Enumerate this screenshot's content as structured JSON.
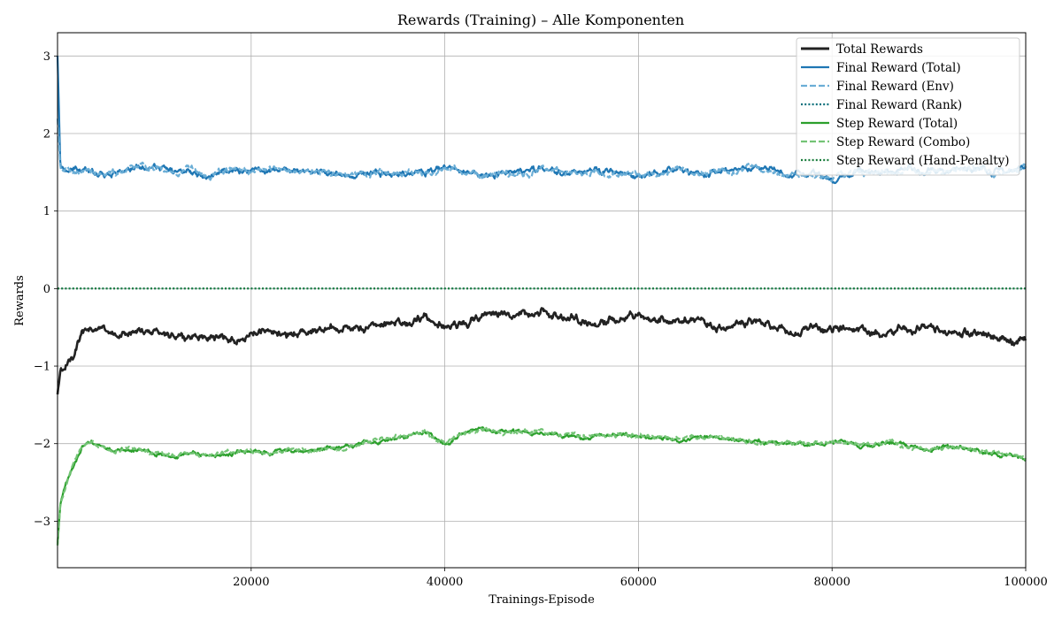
{
  "chart_data": {
    "type": "line",
    "title": "Rewards (Training) – Alle Komponenten",
    "xlabel": "Trainings-Episode",
    "ylabel": "Rewards",
    "xlim": [
      0,
      100000
    ],
    "ylim": [
      -3.6,
      3.3
    ],
    "xticks": [
      20000,
      40000,
      60000,
      80000,
      100000
    ],
    "xtick_labels": [
      "20000",
      "40000",
      "60000",
      "80000",
      "100000"
    ],
    "yticks": [
      -3,
      -2,
      -1,
      0,
      1,
      2,
      3
    ],
    "ytick_labels": [
      "−3",
      "−2",
      "−1",
      "0",
      "1",
      "2",
      "3"
    ],
    "grid": true,
    "legend_position": "top-right",
    "series": [
      {
        "name": "Total Rewards",
        "color": "#222222",
        "style": "solid",
        "x": [
          0,
          300,
          800,
          1500,
          2500,
          3500,
          4500,
          6000,
          8000,
          10000,
          12000,
          14000,
          16000,
          18000,
          20000,
          22000,
          24000,
          26000,
          28000,
          30000,
          32000,
          34000,
          36000,
          38000,
          40000,
          42000,
          44000,
          46000,
          48000,
          50000,
          52000,
          54000,
          56000,
          58000,
          60000,
          62000,
          64000,
          66000,
          68000,
          70000,
          72000,
          74000,
          76000,
          78000,
          80000,
          82000,
          84000,
          86000,
          88000,
          90000,
          92000,
          94000,
          96000,
          98000,
          100000
        ],
        "values": [
          -1.35,
          -1.1,
          -1.0,
          -0.85,
          -0.58,
          -0.55,
          -0.48,
          -0.6,
          -0.55,
          -0.55,
          -0.6,
          -0.62,
          -0.6,
          -0.65,
          -0.6,
          -0.55,
          -0.6,
          -0.55,
          -0.5,
          -0.52,
          -0.5,
          -0.45,
          -0.45,
          -0.35,
          -0.48,
          -0.45,
          -0.35,
          -0.3,
          -0.32,
          -0.3,
          -0.38,
          -0.4,
          -0.45,
          -0.35,
          -0.35,
          -0.42,
          -0.4,
          -0.42,
          -0.5,
          -0.45,
          -0.42,
          -0.48,
          -0.55,
          -0.5,
          -0.55,
          -0.48,
          -0.55,
          -0.55,
          -0.5,
          -0.55,
          -0.55,
          -0.58,
          -0.6,
          -0.65,
          -0.65
        ]
      },
      {
        "name": "Final Reward (Total)",
        "color": "#1f77b4",
        "style": "solid",
        "x": [
          0,
          300,
          800,
          2000,
          4000,
          6000,
          8000,
          10000,
          12000,
          14000,
          16000,
          18000,
          20000,
          22000,
          24000,
          26000,
          28000,
          30000,
          32000,
          34000,
          36000,
          38000,
          40000,
          42000,
          44000,
          46000,
          48000,
          50000,
          52000,
          54000,
          56000,
          58000,
          60000,
          62000,
          64000,
          66000,
          68000,
          70000,
          72000,
          74000,
          76000,
          78000,
          80000,
          82000,
          84000,
          86000,
          88000,
          90000,
          92000,
          94000,
          96000,
          98000,
          100000
        ],
        "values": [
          3.0,
          1.6,
          1.5,
          1.52,
          1.5,
          1.5,
          1.55,
          1.58,
          1.5,
          1.52,
          1.48,
          1.55,
          1.5,
          1.55,
          1.5,
          1.52,
          1.5,
          1.45,
          1.5,
          1.48,
          1.5,
          1.5,
          1.55,
          1.5,
          1.45,
          1.52,
          1.5,
          1.55,
          1.5,
          1.5,
          1.52,
          1.48,
          1.45,
          1.5,
          1.55,
          1.48,
          1.5,
          1.52,
          1.55,
          1.5,
          1.45,
          1.5,
          1.42,
          1.5,
          1.52,
          1.5,
          1.55,
          1.5,
          1.52,
          1.55,
          1.5,
          1.52,
          1.55
        ]
      },
      {
        "name": "Final Reward (Env)",
        "color": "#6baed6",
        "style": "dashed",
        "x": [
          0,
          300,
          800,
          2000,
          4000,
          6000,
          8000,
          10000,
          12000,
          14000,
          16000,
          18000,
          20000,
          22000,
          24000,
          26000,
          28000,
          30000,
          32000,
          34000,
          36000,
          38000,
          40000,
          42000,
          44000,
          46000,
          48000,
          50000,
          52000,
          54000,
          56000,
          58000,
          60000,
          62000,
          64000,
          66000,
          68000,
          70000,
          72000,
          74000,
          76000,
          78000,
          80000,
          82000,
          84000,
          86000,
          88000,
          90000,
          92000,
          94000,
          96000,
          98000,
          100000
        ],
        "values": [
          2.2,
          1.6,
          1.5,
          1.52,
          1.5,
          1.5,
          1.55,
          1.58,
          1.5,
          1.52,
          1.48,
          1.55,
          1.5,
          1.55,
          1.5,
          1.52,
          1.5,
          1.45,
          1.5,
          1.48,
          1.5,
          1.5,
          1.55,
          1.5,
          1.45,
          1.52,
          1.5,
          1.55,
          1.5,
          1.5,
          1.52,
          1.48,
          1.45,
          1.5,
          1.55,
          1.48,
          1.5,
          1.52,
          1.55,
          1.5,
          1.45,
          1.5,
          1.42,
          1.5,
          1.52,
          1.5,
          1.55,
          1.5,
          1.52,
          1.55,
          1.5,
          1.52,
          1.55
        ]
      },
      {
        "name": "Final Reward (Rank)",
        "color": "#08707c",
        "style": "dotted",
        "x": [
          0,
          100000
        ],
        "values": [
          0,
          0
        ]
      },
      {
        "name": "Step Reward (Total)",
        "color": "#2ca02c",
        "style": "solid",
        "x": [
          0,
          300,
          800,
          1500,
          2500,
          3500,
          4500,
          6000,
          8000,
          10000,
          12000,
          14000,
          16000,
          18000,
          20000,
          22000,
          24000,
          26000,
          28000,
          30000,
          32000,
          34000,
          36000,
          38000,
          40000,
          42000,
          44000,
          46000,
          48000,
          50000,
          52000,
          54000,
          56000,
          58000,
          60000,
          62000,
          64000,
          66000,
          68000,
          70000,
          72000,
          74000,
          76000,
          78000,
          80000,
          82000,
          84000,
          86000,
          88000,
          90000,
          92000,
          94000,
          96000,
          98000,
          100000
        ],
        "values": [
          -3.3,
          -2.75,
          -2.55,
          -2.3,
          -2.05,
          -1.98,
          -2.02,
          -2.1,
          -2.08,
          -2.12,
          -2.15,
          -2.12,
          -2.15,
          -2.12,
          -2.1,
          -2.12,
          -2.08,
          -2.1,
          -2.05,
          -2.05,
          -1.98,
          -1.95,
          -1.9,
          -1.85,
          -2.0,
          -1.85,
          -1.82,
          -1.85,
          -1.85,
          -1.85,
          -1.88,
          -1.92,
          -1.9,
          -1.88,
          -1.9,
          -1.92,
          -1.95,
          -1.92,
          -1.92,
          -1.95,
          -1.98,
          -1.98,
          -2.0,
          -2.0,
          -1.98,
          -2.0,
          -2.02,
          -1.98,
          -2.05,
          -2.08,
          -2.05,
          -2.05,
          -2.12,
          -2.15,
          -2.2
        ]
      },
      {
        "name": "Step Reward (Combo)",
        "color": "#74c476",
        "style": "dashed",
        "x": [
          0,
          300,
          800,
          1500,
          2500,
          3500,
          4500,
          6000,
          8000,
          10000,
          12000,
          14000,
          16000,
          18000,
          20000,
          22000,
          24000,
          26000,
          28000,
          30000,
          32000,
          34000,
          36000,
          38000,
          40000,
          42000,
          44000,
          46000,
          48000,
          50000,
          52000,
          54000,
          56000,
          58000,
          60000,
          62000,
          64000,
          66000,
          68000,
          70000,
          72000,
          74000,
          76000,
          78000,
          80000,
          82000,
          84000,
          86000,
          88000,
          90000,
          92000,
          94000,
          96000,
          98000,
          100000
        ],
        "values": [
          -3.3,
          -2.75,
          -2.55,
          -2.3,
          -2.05,
          -1.98,
          -2.02,
          -2.1,
          -2.08,
          -2.12,
          -2.15,
          -2.12,
          -2.15,
          -2.12,
          -2.1,
          -2.12,
          -2.08,
          -2.1,
          -2.05,
          -2.05,
          -1.98,
          -1.95,
          -1.9,
          -1.85,
          -2.0,
          -1.85,
          -1.82,
          -1.85,
          -1.85,
          -1.85,
          -1.88,
          -1.92,
          -1.9,
          -1.88,
          -1.9,
          -1.92,
          -1.95,
          -1.92,
          -1.92,
          -1.95,
          -1.98,
          -1.98,
          -2.0,
          -2.0,
          -1.98,
          -2.0,
          -2.02,
          -1.98,
          -2.05,
          -2.08,
          -2.05,
          -2.05,
          -2.12,
          -2.15,
          -2.2
        ]
      },
      {
        "name": "Step Reward (Hand-Penalty)",
        "color": "#1a7d3c",
        "style": "dotted",
        "x": [
          0,
          100000
        ],
        "values": [
          0,
          0
        ]
      }
    ]
  }
}
